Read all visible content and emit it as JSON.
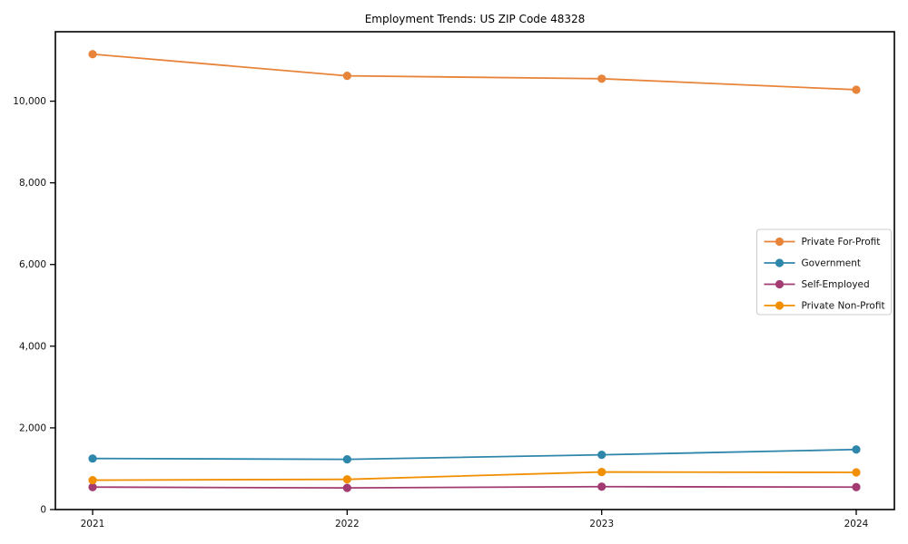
{
  "chart_data": {
    "type": "line",
    "title": "Employment Trends: US ZIP Code 48328",
    "categories": [
      "2021",
      "2022",
      "2023",
      "2024"
    ],
    "series": [
      {
        "name": "Private For-Profit",
        "color": "#E8833A",
        "values": [
          11150,
          10620,
          10550,
          10280
        ]
      },
      {
        "name": "Government",
        "color": "#2E86AB",
        "values": [
          1250,
          1230,
          1340,
          1470
        ]
      },
      {
        "name": "Self-Employed",
        "color": "#A23B72",
        "values": [
          550,
          530,
          560,
          550
        ]
      },
      {
        "name": "Private Non-Profit",
        "color": "#F18F01",
        "values": [
          720,
          740,
          920,
          910
        ]
      }
    ],
    "xlabel": "",
    "ylabel": "",
    "ylim": [
      0,
      11700
    ],
    "yticks": [
      0,
      2000,
      4000,
      6000,
      8000,
      10000
    ],
    "ytick_labels": [
      "0",
      "2,000",
      "4,000",
      "6,000",
      "8,000",
      "10,000"
    ],
    "grid": false,
    "legend_position": "right-middle",
    "background_color": "#ffffff",
    "axis_color": "#000000",
    "legend_border_color": "#cccccc"
  }
}
